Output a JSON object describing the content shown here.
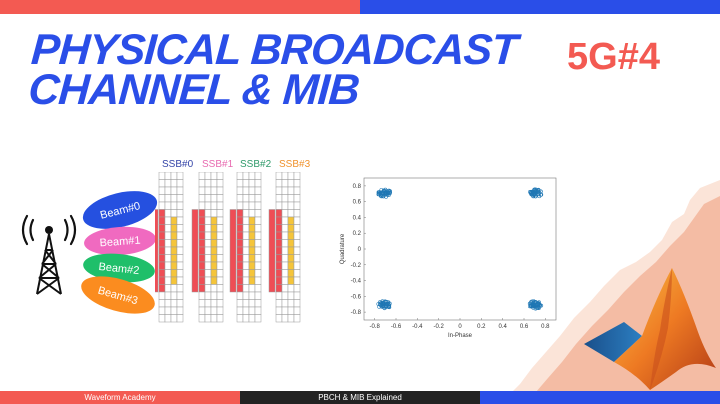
{
  "header": {
    "title_line1": "PHYSICAL BROADCAST",
    "title_line2": "CHANNEL & MIB",
    "episode_tag": "5G#4"
  },
  "colors": {
    "top_bar_left": "#f35a52",
    "top_bar_right": "#2a4ee8",
    "title": "#2a4ee8",
    "tag": "#f35a52",
    "ssb_red": "#ef4d55",
    "ssb_yellow": "#f5c53a",
    "scatter": "#1f77b4"
  },
  "ssb_blocks": [
    {
      "label": "SSB#0",
      "color": "#3545a8"
    },
    {
      "label": "SSB#1",
      "color": "#e86ab0"
    },
    {
      "label": "SSB#2",
      "color": "#2f9a6a"
    },
    {
      "label": "SSB#3",
      "color": "#f0922d"
    }
  ],
  "beams": [
    {
      "label": "Beam#0",
      "color": "#2550e0"
    },
    {
      "label": "Beam#1",
      "color": "#f06ac0"
    },
    {
      "label": "Beam#2",
      "color": "#1fbf6a"
    },
    {
      "label": "Beam#3",
      "color": "#fb8c1f"
    }
  ],
  "icons": {
    "tower": "antenna-tower-icon",
    "logo": "matlab-membrane-logo-icon"
  },
  "chart_data": {
    "type": "scatter",
    "title": "",
    "xlabel": "In-Phase",
    "ylabel": "Quadrature",
    "xlim": [
      -0.9,
      0.9
    ],
    "ylim": [
      -0.9,
      0.9
    ],
    "xticks": [
      "-0.8",
      "-0.6",
      "-0.4",
      "-0.2",
      "0",
      "0.2",
      "0.4",
      "0.6",
      "0.8"
    ],
    "yticks": [
      "0.8",
      "0.6",
      "0.4",
      "0.2",
      "0",
      "-0.2",
      "-0.4",
      "-0.6",
      "-0.8"
    ],
    "series": [
      {
        "points": [
          [
            0.707,
            0.707
          ],
          [
            -0.707,
            0.707
          ],
          [
            -0.707,
            -0.707
          ],
          [
            0.707,
            -0.707
          ]
        ],
        "spread": 0.05
      }
    ],
    "grid": false
  },
  "footer": {
    "left": "Waveform Academy",
    "center": "PBCH & MIB Explained"
  }
}
